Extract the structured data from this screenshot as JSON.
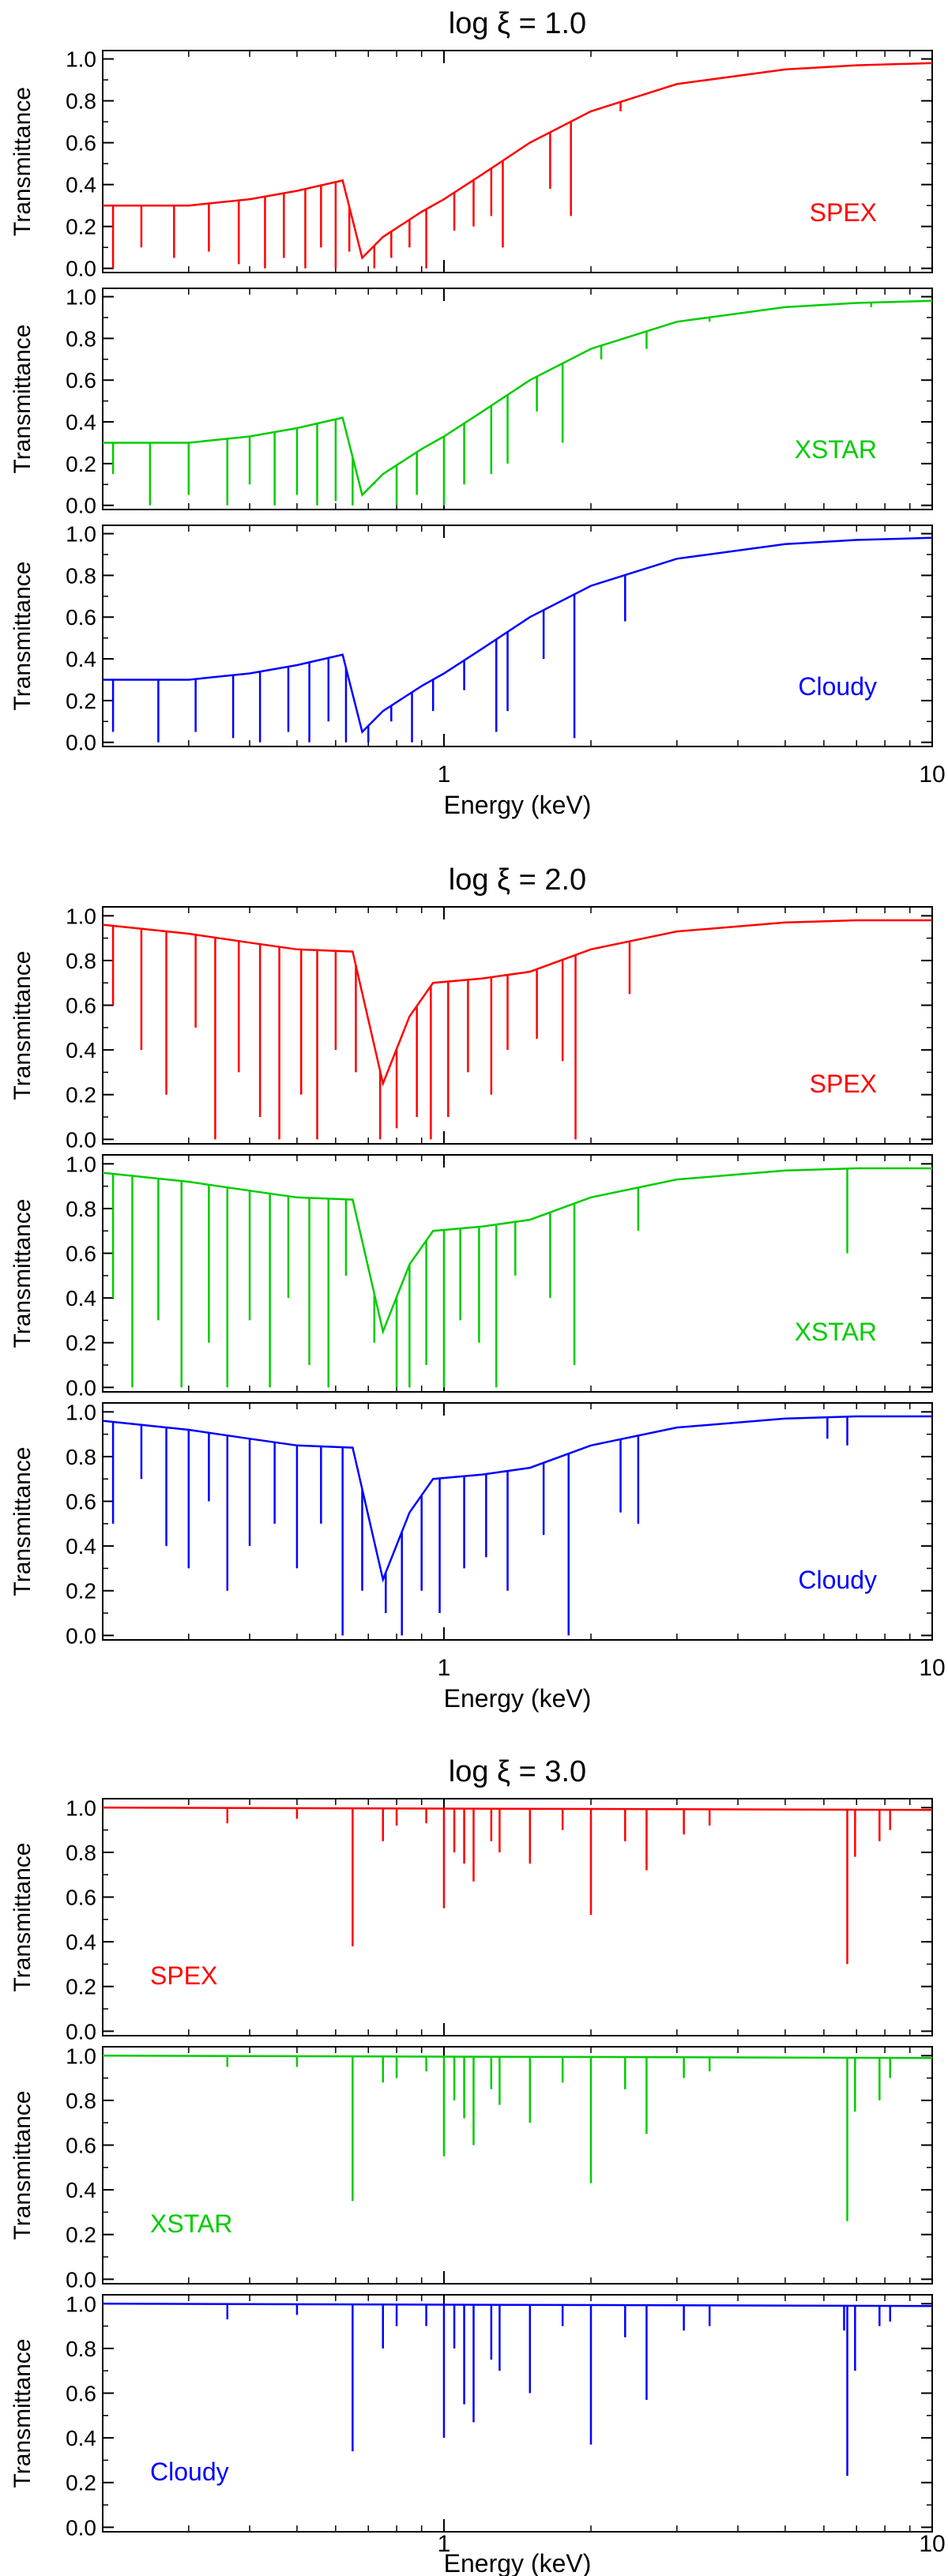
{
  "colors": {
    "SPEX": "#ff0000",
    "XSTAR": "#00cc00",
    "Cloudy": "#0000ff"
  },
  "chart_data": [
    {
      "type": "line",
      "title": "log ξ = 1.0",
      "xlabel": "Energy (keV)",
      "ylabel": "Transmittance",
      "xscale": "log",
      "xlim": [
        0.2,
        10
      ],
      "ylim": [
        -0.02,
        1.04
      ],
      "xticks": [
        {
          "value": 1,
          "label": "1"
        },
        {
          "value": 10,
          "label": "10"
        }
      ],
      "yticks": [
        0.0,
        0.2,
        0.4,
        0.6,
        0.8,
        1.0
      ],
      "continuum": [
        [
          0.2,
          0.3
        ],
        [
          0.3,
          0.3
        ],
        [
          0.4,
          0.33
        ],
        [
          0.5,
          0.37
        ],
        [
          0.62,
          0.42
        ],
        [
          0.68,
          0.05
        ],
        [
          0.75,
          0.15
        ],
        [
          0.9,
          0.27
        ],
        [
          1.0,
          0.33
        ],
        [
          1.2,
          0.45
        ],
        [
          1.5,
          0.6
        ],
        [
          2.0,
          0.75
        ],
        [
          3.0,
          0.88
        ],
        [
          5.0,
          0.95
        ],
        [
          7.0,
          0.97
        ],
        [
          10.0,
          0.98
        ]
      ],
      "series": [
        {
          "name": "SPEX",
          "color_key": "SPEX",
          "lines": [
            [
              0.21,
              0.0
            ],
            [
              0.24,
              0.1
            ],
            [
              0.28,
              0.05
            ],
            [
              0.33,
              0.08
            ],
            [
              0.38,
              0.02
            ],
            [
              0.43,
              0.0
            ],
            [
              0.47,
              0.05
            ],
            [
              0.52,
              0.0
            ],
            [
              0.56,
              0.1
            ],
            [
              0.6,
              0.0
            ],
            [
              0.64,
              0.08
            ],
            [
              0.72,
              0.0
            ],
            [
              0.78,
              0.05
            ],
            [
              0.85,
              0.1
            ],
            [
              0.92,
              0.0
            ],
            [
              1.05,
              0.18
            ],
            [
              1.15,
              0.2
            ],
            [
              1.25,
              0.25
            ],
            [
              1.32,
              0.1
            ],
            [
              1.65,
              0.38
            ],
            [
              1.82,
              0.25
            ],
            [
              2.3,
              0.75
            ]
          ]
        },
        {
          "name": "XSTAR",
          "color_key": "XSTAR",
          "lines": [
            [
              0.21,
              0.15
            ],
            [
              0.25,
              0.0
            ],
            [
              0.3,
              0.05
            ],
            [
              0.36,
              0.0
            ],
            [
              0.4,
              0.1
            ],
            [
              0.45,
              0.0
            ],
            [
              0.5,
              0.05
            ],
            [
              0.55,
              0.0
            ],
            [
              0.6,
              0.02
            ],
            [
              0.65,
              0.0
            ],
            [
              0.72,
              0.1
            ],
            [
              0.8,
              0.0
            ],
            [
              0.88,
              0.05
            ],
            [
              1.0,
              0.0
            ],
            [
              1.1,
              0.1
            ],
            [
              1.25,
              0.15
            ],
            [
              1.35,
              0.2
            ],
            [
              1.55,
              0.45
            ],
            [
              1.75,
              0.3
            ],
            [
              2.1,
              0.7
            ],
            [
              2.6,
              0.75
            ],
            [
              3.5,
              0.88
            ],
            [
              7.5,
              0.95
            ]
          ]
        },
        {
          "name": "Cloudy",
          "color_key": "Cloudy",
          "lines": [
            [
              0.21,
              0.05
            ],
            [
              0.26,
              0.0
            ],
            [
              0.31,
              0.05
            ],
            [
              0.37,
              0.02
            ],
            [
              0.42,
              0.0
            ],
            [
              0.48,
              0.05
            ],
            [
              0.53,
              0.0
            ],
            [
              0.58,
              0.1
            ],
            [
              0.63,
              0.0
            ],
            [
              0.7,
              0.0
            ],
            [
              0.78,
              0.1
            ],
            [
              0.86,
              0.0
            ],
            [
              0.95,
              0.15
            ],
            [
              1.1,
              0.25
            ],
            [
              1.28,
              0.05
            ],
            [
              1.35,
              0.15
            ],
            [
              1.6,
              0.4
            ],
            [
              1.85,
              0.02
            ],
            [
              2.35,
              0.58
            ]
          ]
        }
      ]
    },
    {
      "type": "line",
      "title": "log ξ = 2.0",
      "xlabel": "Energy (keV)",
      "ylabel": "Transmittance",
      "xscale": "log",
      "xlim": [
        0.2,
        10
      ],
      "ylim": [
        -0.02,
        1.04
      ],
      "xticks": [
        {
          "value": 1,
          "label": "1"
        },
        {
          "value": 10,
          "label": "10"
        }
      ],
      "yticks": [
        0.0,
        0.2,
        0.4,
        0.6,
        0.8,
        1.0
      ],
      "continuum": [
        [
          0.2,
          0.96
        ],
        [
          0.3,
          0.92
        ],
        [
          0.4,
          0.88
        ],
        [
          0.5,
          0.85
        ],
        [
          0.65,
          0.84
        ],
        [
          0.75,
          0.25
        ],
        [
          0.85,
          0.55
        ],
        [
          0.95,
          0.7
        ],
        [
          1.2,
          0.72
        ],
        [
          1.5,
          0.75
        ],
        [
          2.0,
          0.85
        ],
        [
          3.0,
          0.93
        ],
        [
          5.0,
          0.97
        ],
        [
          7.0,
          0.98
        ],
        [
          10.0,
          0.98
        ]
      ],
      "series": [
        {
          "name": "SPEX",
          "color_key": "SPEX",
          "lines": [
            [
              0.21,
              0.6
            ],
            [
              0.24,
              0.4
            ],
            [
              0.27,
              0.2
            ],
            [
              0.31,
              0.5
            ],
            [
              0.34,
              0.0
            ],
            [
              0.38,
              0.3
            ],
            [
              0.42,
              0.1
            ],
            [
              0.46,
              0.0
            ],
            [
              0.51,
              0.2
            ],
            [
              0.55,
              0.0
            ],
            [
              0.6,
              0.4
            ],
            [
              0.66,
              0.3
            ],
            [
              0.74,
              0.0
            ],
            [
              0.8,
              0.05
            ],
            [
              0.88,
              0.1
            ],
            [
              0.94,
              0.0
            ],
            [
              1.02,
              0.1
            ],
            [
              1.12,
              0.3
            ],
            [
              1.25,
              0.2
            ],
            [
              1.35,
              0.4
            ],
            [
              1.55,
              0.45
            ],
            [
              1.75,
              0.35
            ],
            [
              1.86,
              0.0
            ],
            [
              2.4,
              0.65
            ]
          ]
        },
        {
          "name": "XSTAR",
          "color_key": "XSTAR",
          "lines": [
            [
              0.21,
              0.4
            ],
            [
              0.23,
              0.0
            ],
            [
              0.26,
              0.3
            ],
            [
              0.29,
              0.0
            ],
            [
              0.33,
              0.2
            ],
            [
              0.36,
              0.0
            ],
            [
              0.4,
              0.3
            ],
            [
              0.44,
              0.0
            ],
            [
              0.48,
              0.4
            ],
            [
              0.53,
              0.1
            ],
            [
              0.58,
              0.0
            ],
            [
              0.63,
              0.5
            ],
            [
              0.72,
              0.2
            ],
            [
              0.8,
              0.0
            ],
            [
              0.85,
              0.0
            ],
            [
              0.92,
              0.1
            ],
            [
              1.0,
              0.0
            ],
            [
              1.08,
              0.3
            ],
            [
              1.18,
              0.2
            ],
            [
              1.28,
              0.0
            ],
            [
              1.4,
              0.5
            ],
            [
              1.65,
              0.4
            ],
            [
              1.85,
              0.1
            ],
            [
              2.5,
              0.7
            ],
            [
              6.7,
              0.6
            ]
          ]
        },
        {
          "name": "Cloudy",
          "color_key": "Cloudy",
          "lines": [
            [
              0.21,
              0.5
            ],
            [
              0.24,
              0.7
            ],
            [
              0.27,
              0.4
            ],
            [
              0.3,
              0.3
            ],
            [
              0.33,
              0.6
            ],
            [
              0.36,
              0.2
            ],
            [
              0.4,
              0.4
            ],
            [
              0.45,
              0.5
            ],
            [
              0.5,
              0.3
            ],
            [
              0.56,
              0.5
            ],
            [
              0.62,
              0.0
            ],
            [
              0.68,
              0.2
            ],
            [
              0.76,
              0.1
            ],
            [
              0.82,
              0.0
            ],
            [
              0.9,
              0.2
            ],
            [
              0.98,
              0.1
            ],
            [
              1.1,
              0.3
            ],
            [
              1.22,
              0.35
            ],
            [
              1.35,
              0.2
            ],
            [
              1.6,
              0.45
            ],
            [
              1.8,
              0.0
            ],
            [
              2.3,
              0.55
            ],
            [
              2.5,
              0.5
            ],
            [
              6.1,
              0.88
            ],
            [
              6.7,
              0.85
            ]
          ]
        }
      ]
    },
    {
      "type": "line",
      "title": "log ξ = 3.0",
      "xlabel": "Energy (keV)",
      "ylabel": "Transmittance",
      "xscale": "log",
      "xlim": [
        0.2,
        10
      ],
      "ylim": [
        -0.02,
        1.04
      ],
      "xticks": [
        {
          "value": 1,
          "label": "1"
        },
        {
          "value": 10,
          "label": "10"
        }
      ],
      "yticks": [
        0.0,
        0.2,
        0.4,
        0.6,
        0.8,
        1.0
      ],
      "continuum": [
        [
          0.2,
          1.0
        ],
        [
          10.0,
          0.99
        ]
      ],
      "series": [
        {
          "name": "SPEX",
          "color_key": "SPEX",
          "lines": [
            [
              0.36,
              0.93
            ],
            [
              0.5,
              0.95
            ],
            [
              0.65,
              0.38
            ],
            [
              0.75,
              0.85
            ],
            [
              0.8,
              0.92
            ],
            [
              0.92,
              0.93
            ],
            [
              1.0,
              0.55
            ],
            [
              1.05,
              0.8
            ],
            [
              1.1,
              0.75
            ],
            [
              1.15,
              0.67
            ],
            [
              1.25,
              0.85
            ],
            [
              1.3,
              0.8
            ],
            [
              1.5,
              0.75
            ],
            [
              1.75,
              0.9
            ],
            [
              2.0,
              0.52
            ],
            [
              2.35,
              0.85
            ],
            [
              2.6,
              0.72
            ],
            [
              3.1,
              0.88
            ],
            [
              3.5,
              0.92
            ],
            [
              6.7,
              0.3
            ],
            [
              6.95,
              0.78
            ],
            [
              7.8,
              0.85
            ],
            [
              8.2,
              0.9
            ]
          ]
        },
        {
          "name": "XSTAR",
          "color_key": "XSTAR",
          "lines": [
            [
              0.36,
              0.95
            ],
            [
              0.5,
              0.95
            ],
            [
              0.65,
              0.35
            ],
            [
              0.75,
              0.88
            ],
            [
              0.8,
              0.9
            ],
            [
              0.92,
              0.93
            ],
            [
              1.0,
              0.55
            ],
            [
              1.05,
              0.8
            ],
            [
              1.1,
              0.72
            ],
            [
              1.15,
              0.6
            ],
            [
              1.25,
              0.85
            ],
            [
              1.3,
              0.78
            ],
            [
              1.5,
              0.7
            ],
            [
              1.75,
              0.88
            ],
            [
              2.0,
              0.43
            ],
            [
              2.35,
              0.85
            ],
            [
              2.6,
              0.65
            ],
            [
              3.1,
              0.9
            ],
            [
              3.5,
              0.93
            ],
            [
              6.7,
              0.26
            ],
            [
              6.95,
              0.75
            ],
            [
              7.8,
              0.8
            ],
            [
              8.2,
              0.9
            ]
          ]
        },
        {
          "name": "Cloudy",
          "color_key": "Cloudy",
          "lines": [
            [
              0.36,
              0.93
            ],
            [
              0.5,
              0.95
            ],
            [
              0.65,
              0.34
            ],
            [
              0.75,
              0.8
            ],
            [
              0.8,
              0.9
            ],
            [
              0.92,
              0.9
            ],
            [
              1.0,
              0.4
            ],
            [
              1.05,
              0.8
            ],
            [
              1.1,
              0.55
            ],
            [
              1.15,
              0.47
            ],
            [
              1.25,
              0.75
            ],
            [
              1.3,
              0.7
            ],
            [
              1.5,
              0.6
            ],
            [
              1.75,
              0.9
            ],
            [
              2.0,
              0.37
            ],
            [
              2.35,
              0.85
            ],
            [
              2.6,
              0.57
            ],
            [
              3.1,
              0.88
            ],
            [
              3.5,
              0.9
            ],
            [
              6.6,
              0.88
            ],
            [
              6.7,
              0.23
            ],
            [
              6.95,
              0.7
            ],
            [
              7.8,
              0.9
            ],
            [
              8.2,
              0.92
            ]
          ]
        }
      ]
    }
  ]
}
